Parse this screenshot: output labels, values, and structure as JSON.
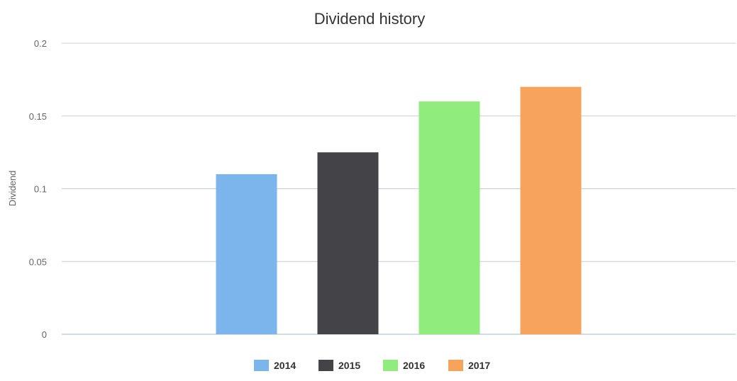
{
  "chart_data": {
    "type": "bar",
    "title": "Dividend history",
    "xlabel": "",
    "ylabel": "Dividend",
    "ylim": [
      0,
      0.2
    ],
    "yticks": [
      "0",
      "0.05",
      "0.1",
      "0.15",
      "0.2"
    ],
    "ytick_values": [
      0,
      0.05,
      0.1,
      0.15,
      0.2
    ],
    "grid": true,
    "legend_position": "bottom-center",
    "series": [
      {
        "name": "2014",
        "value": 0.11,
        "color": "#7cb5ec"
      },
      {
        "name": "2015",
        "value": 0.125,
        "color": "#434348"
      },
      {
        "name": "2016",
        "value": 0.16,
        "color": "#90ed7d"
      },
      {
        "name": "2017",
        "value": 0.17,
        "color": "#f7a35c"
      }
    ]
  }
}
